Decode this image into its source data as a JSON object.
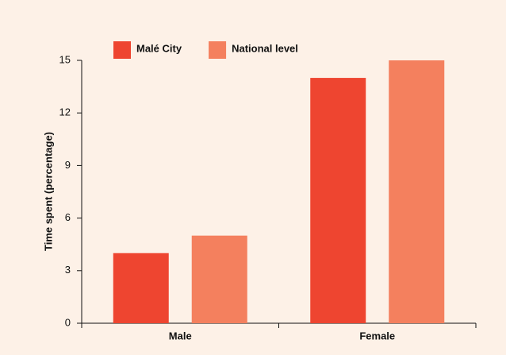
{
  "chart_data": {
    "type": "bar",
    "y_label": "Time spent (percentage)",
    "categories": [
      "Male",
      "Female"
    ],
    "series": [
      {
        "name": "Malé City",
        "color": "#ee4530",
        "values": [
          4,
          14
        ]
      },
      {
        "name": "National level",
        "color": "#f4805e",
        "values": [
          5,
          15
        ]
      }
    ],
    "ylim": [
      0,
      15
    ],
    "yticks": [
      0,
      3,
      6,
      9,
      12,
      15
    ],
    "grid": false,
    "legend": "top-left"
  }
}
